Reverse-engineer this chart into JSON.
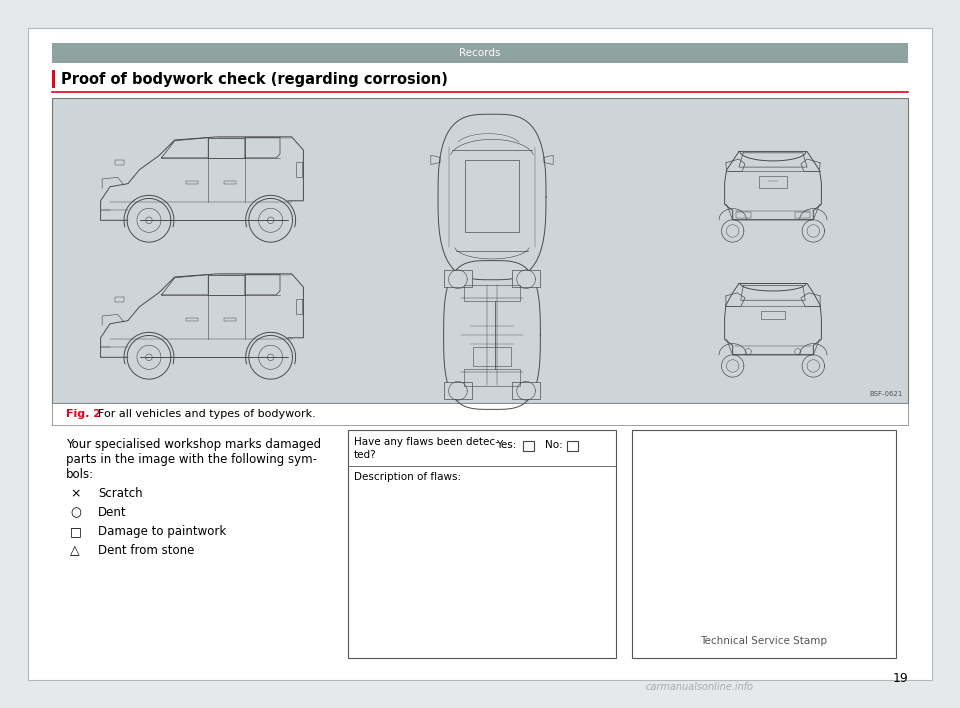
{
  "page_bg": "#e5e9eb",
  "content_bg": "#ffffff",
  "header_bar_color": "#8fa3a0",
  "header_text": "Records",
  "header_text_color": "#ffffff",
  "section_title": "Proof of bodywork check (regarding corrosion)",
  "section_title_color": "#000000",
  "red_bar_color": "#e8001c",
  "car_diagram_bg": "#cdd5d9",
  "fig_label": "Fig. 2",
  "fig_caption": "  For all vehicles and types of bodywork.",
  "fig_label_color": "#e8001c",
  "body_text_line1": "Your specialised workshop marks damaged",
  "body_text_line2": "parts in the image with the following sym-",
  "body_text_line3": "bols:",
  "symbols": [
    {
      "symbol": "×",
      "label": "Scratch"
    },
    {
      "symbol": "○",
      "label": "Dent"
    },
    {
      "symbol": "□",
      "label": "Damage to paintwork"
    },
    {
      "symbol": "△",
      "label": "Dent from stone"
    }
  ],
  "checkbox_label1": "Have any flaws been detec-",
  "checkbox_label2": "ted?",
  "yes_label": "Yes:",
  "no_label": "No:",
  "description_label": "Description of flaws:",
  "stamp_label": "Technical Service Stamp",
  "page_number": "19",
  "bsf_code": "BSF-0621",
  "watermark": "carmanualsonline.info",
  "line_color": "#4a4a4a",
  "line_width": 0.7
}
